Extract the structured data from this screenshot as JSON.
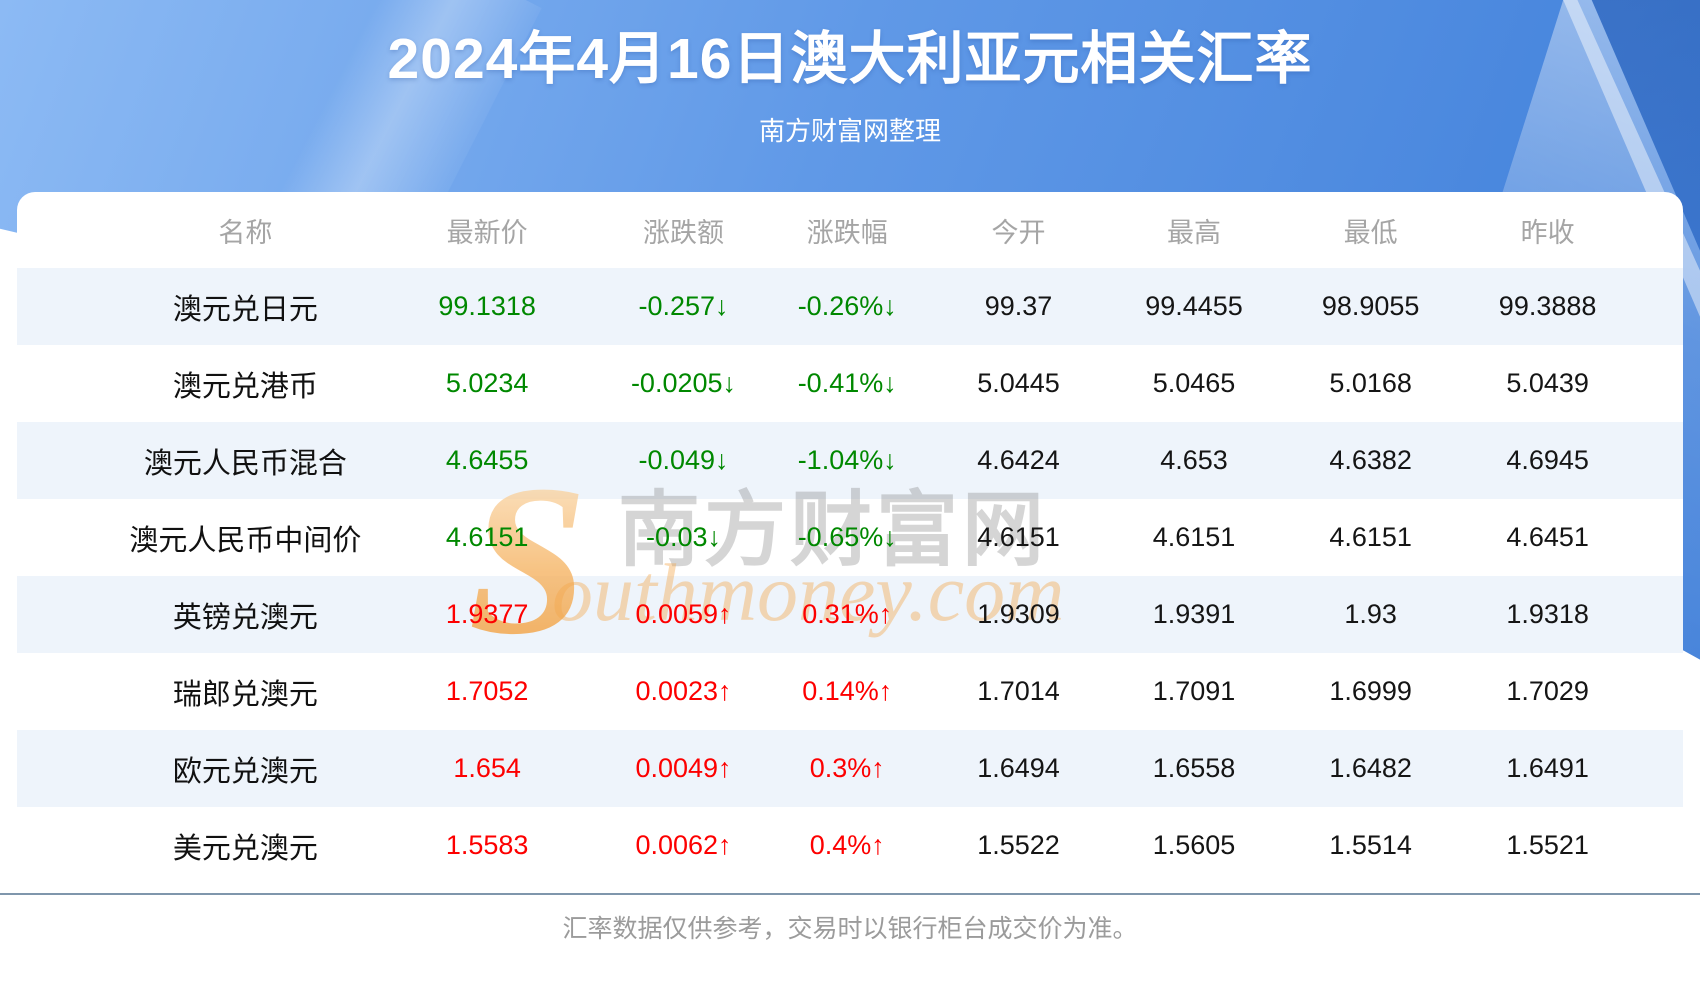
{
  "header": {
    "title": "2024年4月16日澳大利亚元相关汇率",
    "subtitle": "南方财富网整理"
  },
  "table": {
    "columns": [
      "名称",
      "最新价",
      "涨跌额",
      "涨跌幅",
      "今开",
      "最高",
      "最低",
      "昨收"
    ],
    "rows": [
      {
        "name": "澳元兑日元",
        "last": "99.1318",
        "change": "-0.257↓",
        "change_pct": "-0.26%↓",
        "open": "99.37",
        "high": "99.4455",
        "low": "98.9055",
        "prev_close": "99.3888",
        "trend": "down"
      },
      {
        "name": "澳元兑港币",
        "last": "5.0234",
        "change": "-0.0205↓",
        "change_pct": "-0.41%↓",
        "open": "5.0445",
        "high": "5.0465",
        "low": "5.0168",
        "prev_close": "5.0439",
        "trend": "down"
      },
      {
        "name": "澳元人民币混合",
        "last": "4.6455",
        "change": "-0.049↓",
        "change_pct": "-1.04%↓",
        "open": "4.6424",
        "high": "4.653",
        "low": "4.6382",
        "prev_close": "4.6945",
        "trend": "down"
      },
      {
        "name": "澳元人民币中间价",
        "last": "4.6151",
        "change": "-0.03↓",
        "change_pct": "-0.65%↓",
        "open": "4.6151",
        "high": "4.6151",
        "low": "4.6151",
        "prev_close": "4.6451",
        "trend": "down"
      },
      {
        "name": "英镑兑澳元",
        "last": "1.9377",
        "change": "0.0059↑",
        "change_pct": "0.31%↑",
        "open": "1.9309",
        "high": "1.9391",
        "low": "1.93",
        "prev_close": "1.9318",
        "trend": "up"
      },
      {
        "name": "瑞郎兑澳元",
        "last": "1.7052",
        "change": "0.0023↑",
        "change_pct": "0.14%↑",
        "open": "1.7014",
        "high": "1.7091",
        "low": "1.6999",
        "prev_close": "1.7029",
        "trend": "up"
      },
      {
        "name": "欧元兑澳元",
        "last": "1.654",
        "change": "0.0049↑",
        "change_pct": "0.3%↑",
        "open": "1.6494",
        "high": "1.6558",
        "low": "1.6482",
        "prev_close": "1.6491",
        "trend": "up"
      },
      {
        "name": "美元兑澳元",
        "last": "1.5583",
        "change": "0.0062↑",
        "change_pct": "0.4%↑",
        "open": "1.5522",
        "high": "1.5605",
        "low": "1.5514",
        "prev_close": "1.5521",
        "trend": "up"
      }
    ]
  },
  "watermark": {
    "s_glyph": "S",
    "chinese": "南方财富网",
    "english": "outhmoney.com"
  },
  "footer": {
    "note": "汇率数据仅供参考，交易时以银行柜台成交价为准。"
  },
  "colors": {
    "up": "#fd0000",
    "down": "#008800",
    "stripe": "#eef4fb",
    "header_text": "#a5a5a5",
    "separator": "#7f96ac",
    "footer_text": "#9b9b9b",
    "banner_start": "#8cbaf4",
    "banner_mid": "#6099e7",
    "banner_end": "#3e7ed9"
  },
  "chart_data": {
    "type": "table",
    "title": "2024年4月16日澳大利亚元相关汇率",
    "subtitle": "南方财富网整理",
    "columns": [
      "名称",
      "最新价",
      "涨跌额",
      "涨跌幅",
      "今开",
      "最高",
      "最低",
      "昨收"
    ],
    "rows": [
      [
        "澳元兑日元",
        99.1318,
        -0.257,
        "-0.26%",
        99.37,
        99.4455,
        98.9055,
        99.3888
      ],
      [
        "澳元兑港币",
        5.0234,
        -0.0205,
        "-0.41%",
        5.0445,
        5.0465,
        5.0168,
        5.0439
      ],
      [
        "澳元人民币混合",
        4.6455,
        -0.049,
        "-1.04%",
        4.6424,
        4.653,
        4.6382,
        4.6945
      ],
      [
        "澳元人民币中间价",
        4.6151,
        -0.03,
        "-0.65%",
        4.6151,
        4.6151,
        4.6151,
        4.6451
      ],
      [
        "英镑兑澳元",
        1.9377,
        0.0059,
        "0.31%",
        1.9309,
        1.9391,
        1.93,
        1.9318
      ],
      [
        "瑞郎兑澳元",
        1.7052,
        0.0023,
        "0.14%",
        1.7014,
        1.7091,
        1.6999,
        1.7029
      ],
      [
        "欧元兑澳元",
        1.654,
        0.0049,
        "0.3%",
        1.6494,
        1.6558,
        1.6482,
        1.6491
      ],
      [
        "美元兑澳元",
        1.5583,
        0.0062,
        "0.4%",
        1.5522,
        1.5605,
        1.5514,
        1.5521
      ]
    ],
    "footnote": "汇率数据仅供参考，交易时以银行柜台成交价为准。"
  }
}
